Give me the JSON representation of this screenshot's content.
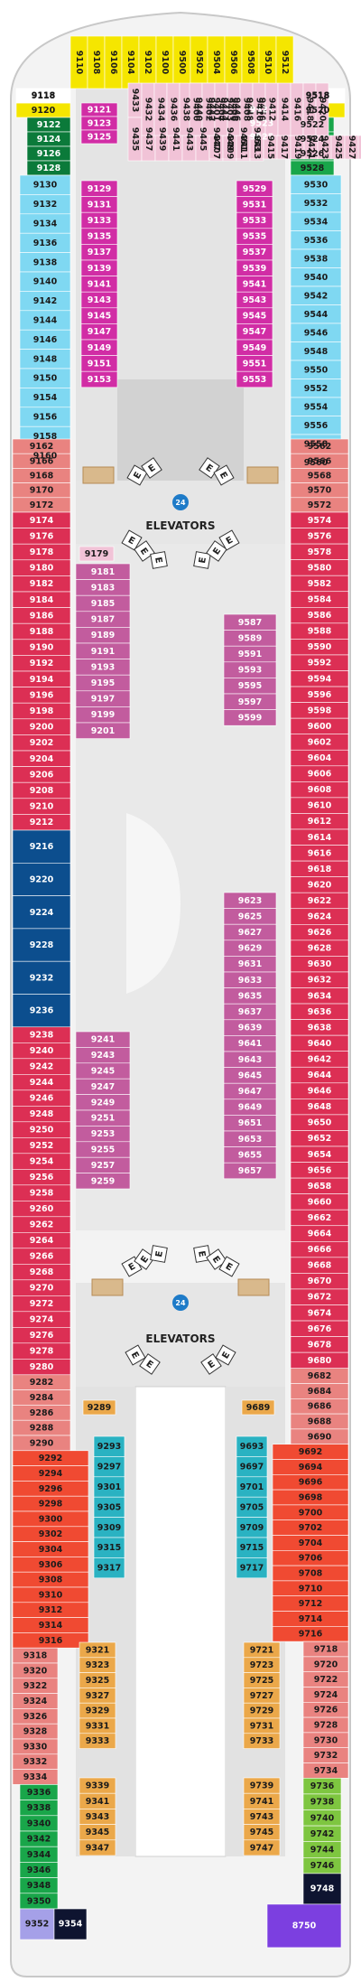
{
  "colors": {
    "yellow": "#F5E600",
    "light_green": "#19A64A",
    "dark_green": "#0B7A3A",
    "sky_blue": "#7FD8F2",
    "salmon": "#E98380",
    "crimson": "#DC2F54",
    "navy": "#0C4E8E",
    "mauve": "#C25C9E",
    "magenta": "#D12DA5",
    "pink_light": "#F1C3D7",
    "lime": "#7EC640",
    "teal": "#2AB2C2",
    "orange_red": "#F04A32",
    "amber": "#EBA84A",
    "purple": "#7C3FE0",
    "lavender": "#A5A0E8",
    "black_navy": "#0E1430",
    "corridor": "#D9D9D9",
    "public": "#E2E2E2"
  },
  "labels": {
    "elevators_top": "ELEVATORS",
    "elevators_bottom": "ELEVATORS",
    "elevator_letter": "E",
    "info_badge": "24"
  },
  "forward": {
    "top_row": [
      "9110",
      "9108",
      "9106",
      "9104",
      "9102",
      "9100",
      "9500",
      "9502",
      "9504",
      "9506",
      "9508",
      "9510",
      "9512"
    ],
    "left_row": [
      "9118",
      "9120"
    ],
    "right_row": [
      "9518",
      "9520"
    ]
  },
  "port_outer": {
    "greens": [
      "9122",
      "9124",
      "9126",
      "9128"
    ],
    "blues": [
      "9130",
      "9132",
      "9134",
      "9136",
      "9138",
      "9140",
      "9142",
      "9144",
      "9146",
      "9148",
      "9150",
      "9154",
      "9156",
      "9158",
      "9160"
    ],
    "salmon_upper": [
      "9162",
      "9166",
      "9168",
      "9170",
      "9172"
    ],
    "crimson_upper": [
      "9174",
      "9176",
      "9178",
      "9180",
      "9182",
      "9184",
      "9186",
      "9188",
      "9190",
      "9192",
      "9194",
      "9196",
      "9198",
      "9200",
      "9202",
      "9204",
      "9206",
      "9208",
      "9210",
      "9212"
    ],
    "navy": [
      "9216",
      "9220",
      "9224",
      "9228",
      "9232",
      "9236"
    ],
    "crimson_lower": [
      "9238",
      "9240",
      "9242",
      "9244",
      "9246",
      "9248",
      "9250",
      "9252",
      "9254",
      "9256",
      "9258",
      "9260",
      "9262",
      "9264",
      "9266",
      "9268",
      "9270",
      "9272",
      "9274",
      "9276",
      "9278",
      "9280"
    ],
    "salmon_lower": [
      "9282",
      "9284",
      "9286",
      "9288",
      "9290"
    ],
    "orange": [
      "9292",
      "9294",
      "9296",
      "9298",
      "9300",
      "9302",
      "9304",
      "9306",
      "9308",
      "9310",
      "9312",
      "9314",
      "9316"
    ],
    "salmon_aft": [
      "9318",
      "9320",
      "9322",
      "9324",
      "9326",
      "9328",
      "9330",
      "9332",
      "9334"
    ],
    "green_aft": [
      "9336",
      "9338",
      "9340",
      "9342",
      "9344",
      "9346",
      "9348",
      "9350"
    ],
    "aft_end": [
      "9352",
      "9354"
    ]
  },
  "starboard_outer": {
    "greens": [
      "9522",
      "9524",
      "9526",
      "9528"
    ],
    "blues": [
      "9530",
      "9532",
      "9534",
      "9536",
      "9538",
      "9540",
      "9542",
      "9544",
      "9546",
      "9548",
      "9550",
      "9552",
      "9554",
      "9556",
      "9558",
      "9560"
    ],
    "salmon_upper": [
      "9562",
      "9566",
      "9568",
      "9570",
      "9572"
    ],
    "crimson": [
      "9574",
      "9576",
      "9578",
      "9580",
      "9582",
      "9584",
      "9586",
      "9588",
      "9590",
      "9592",
      "9594",
      "9596",
      "9598",
      "9600",
      "9602",
      "9604",
      "9606",
      "9608",
      "9610",
      "9612",
      "9614",
      "9616",
      "9618",
      "9620",
      "9622",
      "9624",
      "9626",
      "9628",
      "9630",
      "9632",
      "9634",
      "9636",
      "9638",
      "9640",
      "9642",
      "9644",
      "9646",
      "9648",
      "9650",
      "9652",
      "9654",
      "9656",
      "9658",
      "9660",
      "9662",
      "9664",
      "9666",
      "9668",
      "9670",
      "9672",
      "9674",
      "9676",
      "9678",
      "9680"
    ],
    "salmon_lower": [
      "9682",
      "9684",
      "9686",
      "9688",
      "9690"
    ],
    "orange": [
      "9692",
      "9694",
      "9696",
      "9698",
      "9700",
      "9702",
      "9704",
      "9706",
      "9708",
      "9710",
      "9712",
      "9714",
      "9716"
    ],
    "salmon_aft": [
      "9718",
      "9720",
      "9722",
      "9724",
      "9726",
      "9728",
      "9730",
      "9732",
      "9734"
    ],
    "green_aft": [
      "9736",
      "9738",
      "9740",
      "9742",
      "9744",
      "9746"
    ],
    "aft_end": [
      "9748",
      "8750"
    ]
  },
  "port_inner": {
    "forward": [
      "9121",
      "9123",
      "9125"
    ],
    "magenta": [
      "9129",
      "9131",
      "9133",
      "9135",
      "9137",
      "9139",
      "9141",
      "9143",
      "9145",
      "9147",
      "9149",
      "9151",
      "9153"
    ],
    "vertical_outer": [
      "9433",
      "9435",
      "9437",
      "9439",
      "9441",
      "9443",
      "9445",
      "9447",
      "9449",
      "9451",
      "9453"
    ],
    "vertical_inner": [
      "9432",
      "9434",
      "9436",
      "9438",
      "9440",
      "9442",
      "9444",
      "9446",
      "9448",
      "9450"
    ],
    "upper_mauve": [
      "9181",
      "9183",
      "9185",
      "9187",
      "9189",
      "9191",
      "9193",
      "9195",
      "9197",
      "9199",
      "9201"
    ],
    "lower_mauve": [
      "9241",
      "9243",
      "9245",
      "9247",
      "9249",
      "9251",
      "9253",
      "9255",
      "9257",
      "9259"
    ],
    "light_single": "9179",
    "amber_single": "9289",
    "teal": [
      "9293",
      "9297",
      "9301",
      "9305",
      "9309",
      "9315",
      "9317"
    ],
    "amber": [
      "9321",
      "9323",
      "9325",
      "9327",
      "9329",
      "9331",
      "9333",
      "9339",
      "9341",
      "9343",
      "9345",
      "9347"
    ]
  },
  "starboard_inner": {
    "forward": [
      "9521",
      "9523",
      "9525"
    ],
    "magenta": [
      "9529",
      "9531",
      "9533",
      "9535",
      "9537",
      "9539",
      "9541",
      "9543",
      "9545",
      "9547",
      "9549",
      "9551",
      "9553"
    ],
    "vertical_outer": [
      "9401",
      "9403",
      "9407",
      "9409",
      "9411",
      "9413",
      "9415",
      "9417",
      "9419",
      "9421",
      "9423",
      "9425",
      "9427",
      "9429",
      "9431"
    ],
    "vertical_inner": [
      "9400",
      "9402",
      "9404",
      "9406",
      "9408",
      "9410",
      "9412",
      "9414",
      "9416",
      "9418",
      "9420"
    ],
    "upper_mauve": [
      "9587",
      "9589",
      "9591",
      "9593",
      "9595",
      "9597",
      "9599"
    ],
    "lower_mauve": [
      "9623",
      "9625",
      "9627",
      "9629",
      "9631",
      "9633",
      "9635",
      "9637",
      "9639",
      "9641",
      "9643",
      "9645",
      "9647",
      "9649",
      "9651",
      "9653",
      "9655",
      "9657"
    ],
    "amber_single": "9689",
    "teal": [
      "9693",
      "9697",
      "9701",
      "9705",
      "9709",
      "9715",
      "9717"
    ],
    "amber": [
      "9721",
      "9723",
      "9725",
      "9727",
      "9729",
      "9731",
      "9733",
      "9739",
      "9741",
      "9743",
      "9745",
      "9747"
    ]
  }
}
